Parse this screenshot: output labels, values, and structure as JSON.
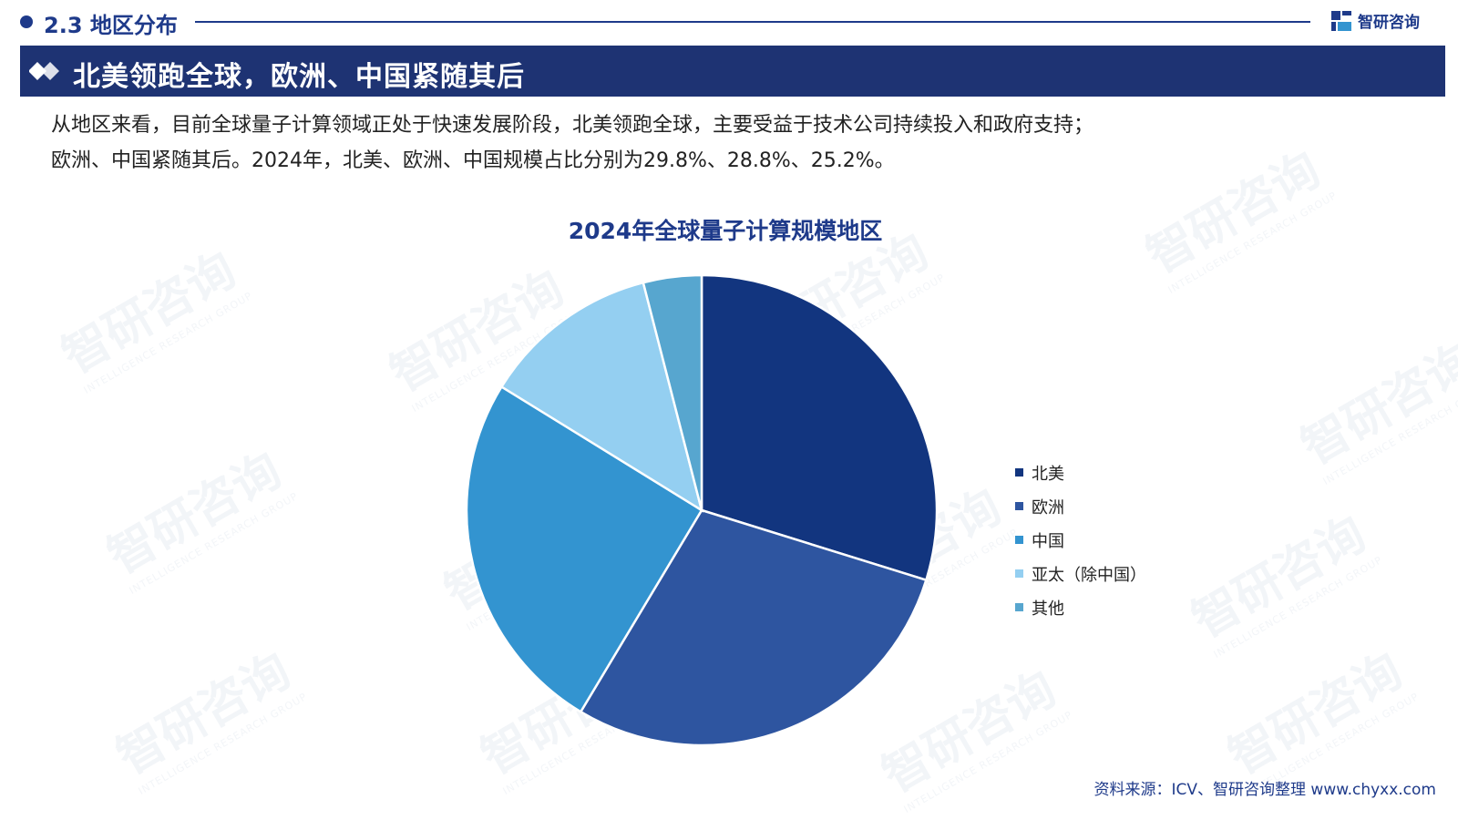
{
  "header": {
    "section_title": "2.3 地区分布",
    "brand": "智研咨询"
  },
  "banner": {
    "title": "北美领跑全球，欧洲、中国紧随其后"
  },
  "intro": {
    "line1": "从地区来看，目前全球量子计算领域正处于快速发展阶段，北美领跑全球，主要受益于技术公司持续投入和政府支持；",
    "line2": "欧洲、中国紧随其后。2024年，北美、欧洲、中国规模占比分别为29.8%、28.8%、25.2%。"
  },
  "watermark": {
    "text": "智研咨询",
    "subtext": "INTELLIGENCE RESEARCH GROUP"
  },
  "chart_data": {
    "type": "pie",
    "title": "2024年全球量子计算规模地区",
    "unit": "%",
    "labels": [
      "北美",
      "欧洲",
      "中国",
      "亚太（除中国）",
      "其他"
    ],
    "values": [
      29.8,
      28.8,
      25.2,
      12.2,
      4.0
    ],
    "colors": [
      "#12357f",
      "#2e55a0",
      "#3394d0",
      "#94cff1",
      "#57a6cf"
    ],
    "start_angle": "12 o'clock",
    "direction": "clockwise",
    "legend_position": "right",
    "data_labels": false
  },
  "source": {
    "text": "资料来源：ICV、智研咨询整理 www.chyxx.com"
  }
}
